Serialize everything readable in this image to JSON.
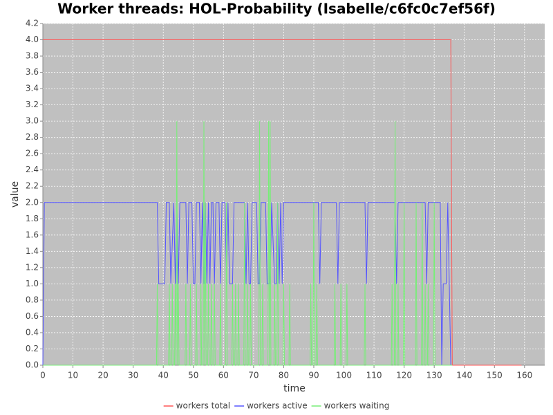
{
  "chart_data": {
    "type": "line",
    "title": "Worker threads: HOL-Probability (Isabelle/c6fc0c7ef56f)",
    "x_label": "time",
    "y_label": "value",
    "xlim": [
      0,
      166.7
    ],
    "ylim": [
      0,
      4.2
    ],
    "xticks": [
      0,
      10,
      20,
      30,
      40,
      50,
      60,
      70,
      80,
      90,
      100,
      110,
      120,
      130,
      140,
      150,
      160
    ],
    "yticks": [
      {
        "value": 0,
        "label": "0.0"
      },
      0.2,
      0.4,
      0.6,
      0.8,
      {
        "value": 1,
        "label": "1.0"
      },
      1.2,
      1.4,
      1.6,
      1.8,
      {
        "value": 2,
        "label": "2.0"
      },
      2.2,
      2.4,
      2.6,
      2.8,
      {
        "value": 3,
        "label": "3.0"
      },
      3.2,
      3.4,
      3.6,
      3.8,
      {
        "value": 4,
        "label": "4.0"
      },
      4.2
    ],
    "grid": true,
    "legend": "bottom",
    "background": "#c0c0c0",
    "series": [
      {
        "name": "workers total",
        "color": "#ff5555",
        "x": [
          0,
          135.5,
          136,
          159
        ],
        "values": [
          4,
          4,
          0,
          0
        ]
      },
      {
        "name": "workers active",
        "color": "#5555ff",
        "x": [
          0,
          0.5,
          38,
          38.5,
          40.5,
          41,
          42,
          42.5,
          43.5,
          44,
          44.5,
          45,
          45.5,
          47.5,
          48,
          48.5,
          49.5,
          50,
          50.5,
          51,
          52,
          52.5,
          53,
          53.5,
          54,
          54.5,
          55,
          55.5,
          56,
          56.5,
          57,
          57.5,
          58.5,
          59,
          59.5,
          60.5,
          61,
          61.5,
          62,
          63,
          63.5,
          67,
          67.5,
          68,
          68.5,
          69,
          69.5,
          71,
          71.5,
          72,
          72.5,
          74,
          74.5,
          75.5,
          76,
          77,
          77.5,
          78,
          78.5,
          79,
          79.5,
          80,
          91.5,
          92,
          92.5,
          97.5,
          98,
          98.5,
          107,
          107.5,
          108,
          117,
          117.5,
          118,
          127,
          127.5,
          128,
          132,
          132.5,
          133,
          134,
          134.5,
          135,
          135.5
        ],
        "values": [
          0,
          2,
          2,
          1,
          1,
          2,
          2,
          1,
          2,
          1,
          2,
          1,
          2,
          2,
          1,
          2,
          2,
          1,
          1,
          2,
          2,
          1,
          2,
          1,
          2,
          1,
          2,
          1,
          2,
          2,
          1,
          2,
          2,
          1,
          2,
          2,
          1,
          2,
          1,
          1,
          2,
          2,
          1,
          2,
          1,
          1,
          2,
          2,
          1,
          1,
          2,
          2,
          1,
          1,
          2,
          1,
          1,
          2,
          1,
          2,
          1,
          2,
          2,
          1,
          2,
          2,
          1,
          2,
          2,
          1,
          2,
          2,
          1,
          2,
          2,
          1,
          2,
          2,
          0,
          1,
          1,
          2,
          1,
          0
        ]
      },
      {
        "name": "workers waiting",
        "color": "#77ee77",
        "x": [
          0,
          37.75,
          38,
          38.25,
          41.75,
          42,
          42.25,
          42.75,
          43,
          43.25,
          43.75,
          44,
          44.25,
          44.5,
          44.75,
          45,
          45.25,
          47.25,
          47.5,
          47.75,
          48.75,
          49,
          49.25,
          50.75,
          51,
          51.25,
          52.25,
          52.5,
          52.75,
          53.25,
          53.5,
          53.75,
          54,
          54.25,
          54.75,
          55,
          55.25,
          55.75,
          56,
          56.25,
          56.75,
          57,
          57.25,
          58.75,
          59,
          59.25,
          60.75,
          61,
          61.25,
          62.75,
          63,
          63.25,
          63.75,
          64,
          64.25,
          64.75,
          65,
          65.25,
          66.75,
          67,
          67.25,
          67.75,
          68,
          68.25,
          68.75,
          69,
          69.25,
          71.75,
          72,
          72.25,
          72.75,
          73,
          73.25,
          74.75,
          75,
          75.25,
          75.5,
          75.75,
          76.75,
          77,
          77.25,
          77.75,
          78,
          78.25,
          79.75,
          80,
          80.25,
          81.75,
          82,
          82.25,
          88.75,
          89,
          89.25,
          89.75,
          90,
          90.25,
          90.75,
          91,
          91.25,
          96.75,
          97,
          97.25,
          98.75,
          99,
          99.25,
          100.75,
          101,
          101.25,
          106.75,
          107,
          107.25,
          115.75,
          116,
          116.25,
          116.75,
          117,
          117.25,
          117.75,
          118,
          118.25,
          119.75,
          120,
          120.25,
          123.75,
          124,
          124.25,
          125.75,
          126,
          126.25,
          126.75,
          127,
          127.25,
          127.75,
          128,
          128.25,
          129.75,
          130,
          130.25,
          136
        ],
        "values": [
          0,
          0,
          1,
          0,
          0,
          1,
          0,
          0,
          1,
          0,
          0,
          1,
          0,
          3,
          0,
          1,
          0,
          0,
          1,
          0,
          0,
          1,
          0,
          0,
          1,
          0,
          0,
          1,
          0,
          0,
          3,
          0,
          2,
          0,
          0,
          1,
          0,
          0,
          1,
          0,
          0,
          1,
          0,
          0,
          1,
          0,
          0,
          2,
          0,
          0,
          1,
          0,
          0,
          1,
          0,
          0,
          1,
          0,
          0,
          2,
          0,
          0,
          1,
          0,
          0,
          1,
          0,
          0,
          3,
          0,
          0,
          1,
          0,
          0,
          3,
          0,
          3,
          0,
          0,
          1,
          0,
          0,
          2,
          0,
          0,
          1,
          0,
          0,
          1,
          0,
          0,
          1,
          0,
          0,
          2,
          0,
          0,
          1,
          0,
          0,
          1,
          0,
          0,
          1,
          0,
          0,
          1,
          0,
          0,
          1,
          0,
          0,
          1,
          0,
          0,
          3,
          0,
          0,
          1,
          0,
          0,
          2,
          0,
          0,
          2,
          0,
          0,
          2,
          0,
          0,
          1,
          0,
          0,
          1,
          0,
          0,
          2,
          0,
          0
        ]
      }
    ]
  }
}
